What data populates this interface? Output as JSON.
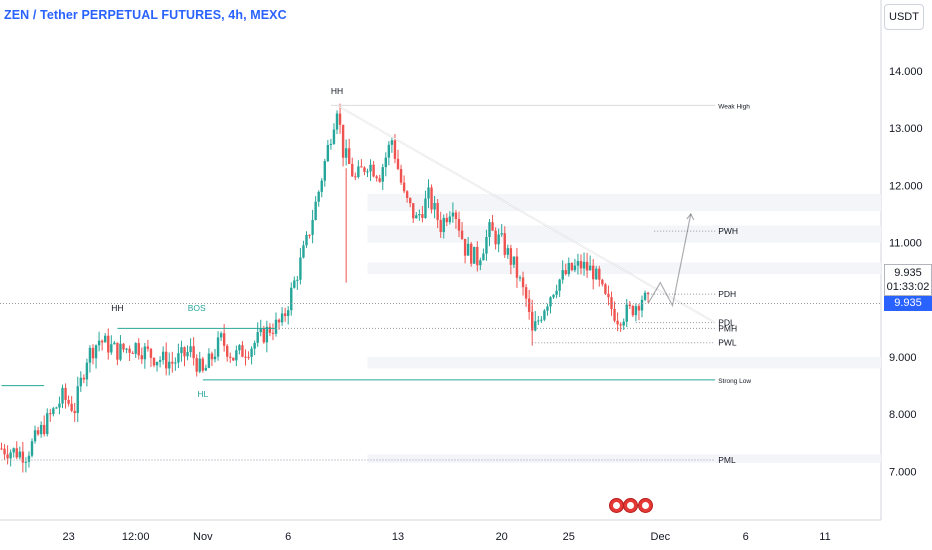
{
  "header": {
    "title": "ZEN / Tether PERPETUAL FUTURES, 4h, MEXC",
    "currency_button": "USDT"
  },
  "price_panel": {
    "last_price": "9.935",
    "countdown": "01:33:02",
    "tag_price": "9.935"
  },
  "colors": {
    "up": "#26a69a",
    "down": "#ef5350",
    "accent": "#2962ff",
    "annotation": "#131722",
    "grid": "#f0f3fa"
  },
  "chart_data": {
    "type": "candlestick",
    "title": "ZEN / Tether PERPETUAL FUTURES, 4h, MEXC",
    "y_ticks": [
      "14.000",
      "13.000",
      "12.000",
      "11.000",
      "9.000",
      "8.000",
      "7.000"
    ],
    "y_tick_values": [
      14,
      13,
      12,
      11,
      9,
      8,
      7
    ],
    "ylim": [
      6.0,
      15.3
    ],
    "x_ticks": [
      "23",
      "12:00",
      "Nov",
      "6",
      "13",
      "20",
      "25",
      "Dec",
      "6",
      "11"
    ],
    "x_tick_bars": [
      11,
      22,
      33,
      47,
      65,
      82,
      93,
      108,
      122,
      135
    ],
    "candles_shown_as_close_path": [
      [
        0,
        7.4
      ],
      [
        4,
        7.3
      ],
      [
        7,
        7.8
      ],
      [
        10,
        8.3
      ],
      [
        12,
        8.1
      ],
      [
        14,
        9.0
      ],
      [
        16,
        9.3
      ],
      [
        19,
        9.1
      ],
      [
        22,
        9.2
      ],
      [
        25,
        9.0
      ],
      [
        28,
        8.9
      ],
      [
        31,
        9.1
      ],
      [
        33,
        8.7
      ],
      [
        36,
        9.3
      ],
      [
        38,
        9.0
      ],
      [
        41,
        9.2
      ],
      [
        44,
        9.5
      ],
      [
        46,
        9.6
      ],
      [
        48,
        10.3
      ],
      [
        50,
        11.0
      ],
      [
        52,
        11.9
      ],
      [
        54,
        12.9
      ],
      [
        55,
        13.4
      ],
      [
        56,
        12.6
      ],
      [
        58,
        12.1
      ],
      [
        60,
        12.4
      ],
      [
        62,
        12.2
      ],
      [
        64,
        12.8
      ],
      [
        66,
        11.8
      ],
      [
        68,
        11.4
      ],
      [
        70,
        11.8
      ],
      [
        72,
        11.3
      ],
      [
        74,
        11.7
      ],
      [
        76,
        10.9
      ],
      [
        78,
        10.7
      ],
      [
        80,
        11.2
      ],
      [
        82,
        11.0
      ],
      [
        84,
        10.6
      ],
      [
        86,
        10.0
      ],
      [
        87,
        9.4
      ],
      [
        89,
        9.9
      ],
      [
        91,
        10.3
      ],
      [
        93,
        10.5
      ],
      [
        95,
        10.6
      ],
      [
        97,
        10.5
      ],
      [
        99,
        10.0
      ],
      [
        101,
        9.7
      ],
      [
        103,
        9.8
      ],
      [
        105,
        10.05
      ],
      [
        106,
        9.935
      ]
    ],
    "projection": [
      [
        106,
        9.935
      ],
      [
        108,
        10.3
      ],
      [
        110,
        9.9
      ],
      [
        113,
        11.5
      ]
    ],
    "levels": [
      {
        "label": "Weak High",
        "value": 13.4,
        "from_bar": 54,
        "to_bar": 117,
        "style": "solid"
      },
      {
        "label": "PWH",
        "value": 11.2,
        "from_bar": 107,
        "to_bar": 117,
        "style": "dotted"
      },
      {
        "label": "PDH",
        "value": 10.1,
        "from_bar": 106,
        "to_bar": 117,
        "style": "dotted"
      },
      {
        "label": "PDL",
        "value": 9.6,
        "from_bar": 104,
        "to_bar": 117,
        "style": "dotted"
      },
      {
        "label": "PMH",
        "value": 9.5,
        "from_bar": 45,
        "to_bar": 117,
        "style": "dotted"
      },
      {
        "label": "PWL",
        "value": 9.25,
        "from_bar": 87,
        "to_bar": 117,
        "style": "dotted"
      },
      {
        "label": "Strong Low",
        "value": 8.6,
        "from_bar": 33,
        "to_bar": 117,
        "style": "solid"
      },
      {
        "label": "PML",
        "value": 7.2,
        "from_bar": 0,
        "to_bar": 117,
        "style": "dotted"
      }
    ],
    "structure_lines": [
      {
        "value": 9.5,
        "from_bar": 19,
        "to_bar": 45,
        "label": "BOS"
      },
      {
        "value": 8.5,
        "from_bar": 0,
        "to_bar": 7
      }
    ],
    "trendline": [
      [
        55,
        13.4
      ],
      [
        117,
        9.6
      ]
    ],
    "labels": [
      {
        "text": "HH",
        "bar": 55,
        "value": 13.6
      },
      {
        "text": "HH",
        "bar": 19,
        "value": 9.8
      },
      {
        "text": "BOS",
        "bar": 32,
        "value": 9.8
      },
      {
        "text": "HL",
        "bar": 33,
        "value": 8.3
      }
    ],
    "zones": [
      {
        "from": 11.55,
        "to": 11.85
      },
      {
        "from": 11.0,
        "to": 11.3
      },
      {
        "from": 10.45,
        "to": 10.65
      },
      {
        "from": 8.8,
        "to": 9.0
      },
      {
        "from": 7.15,
        "to": 7.3
      }
    ],
    "last_price": 9.935,
    "grid": true
  },
  "events": [
    {
      "name": "us-event-1-icon"
    },
    {
      "name": "us-event-2-icon"
    },
    {
      "name": "us-event-3-icon"
    }
  ]
}
